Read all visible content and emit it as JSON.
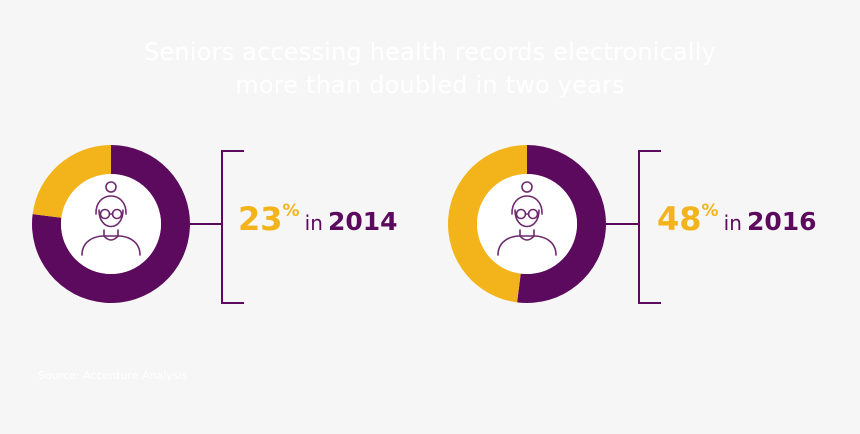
{
  "title_lines": [
    "Seniors accessing health records electronically",
    "more than doubled in two years"
  ],
  "source": "Source: Accenture Analysis",
  "colors": {
    "purple": "#5c0a5e",
    "gold": "#f2b31b",
    "white": "#ffffff",
    "icon_stroke": "#6c2a6e"
  },
  "icons": [
    "senior-woman-icon"
  ],
  "chart_data": {
    "type": "pie",
    "variant": "donut",
    "items": [
      {
        "year": "2014",
        "value": 23,
        "value_text": "23",
        "unit": "%",
        "connector": "in",
        "year_text": "2014"
      },
      {
        "year": "2016",
        "value": 48,
        "value_text": "48",
        "unit": "%",
        "connector": "in",
        "year_text": "2016"
      }
    ]
  }
}
